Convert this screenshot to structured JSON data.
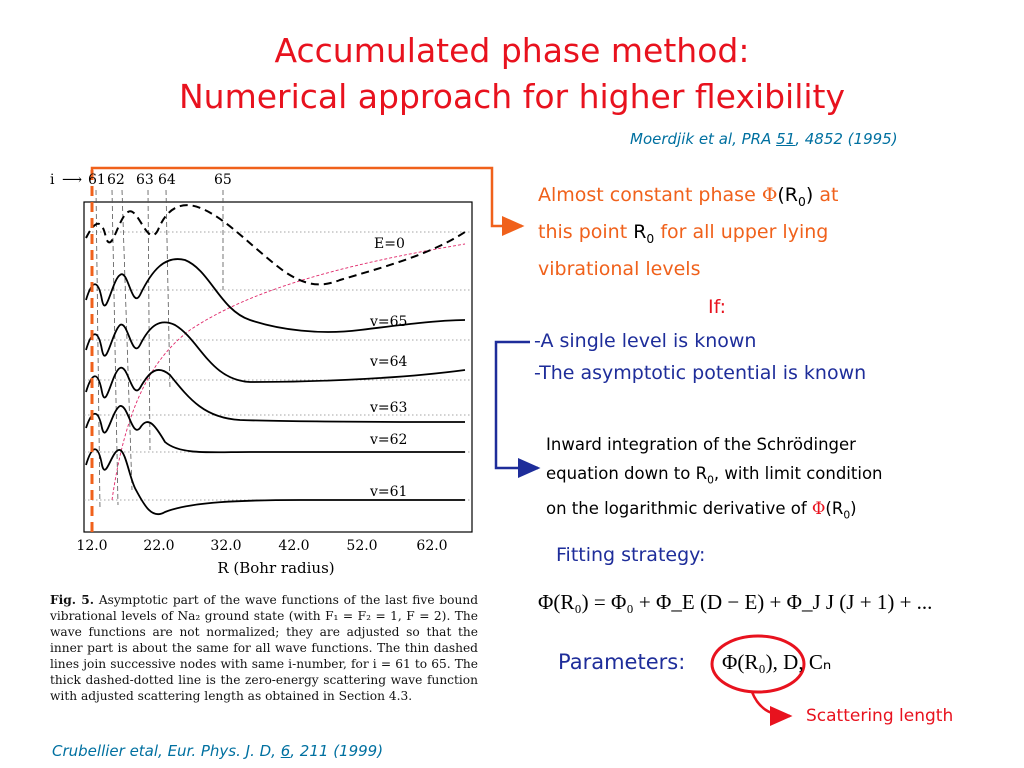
{
  "title": {
    "line1": "Accumulated phase method:",
    "line2": "Numerical approach for higher flexibility"
  },
  "reference_top": {
    "text_before": "Moerdjik et al, PRA ",
    "volume": "51",
    "text_after": ", 4852 (1995)"
  },
  "figure": {
    "i_label": "i",
    "node_numbers": [
      "61",
      "62",
      "63",
      "64",
      "65"
    ],
    "curve_labels": [
      "E=0",
      "v=65",
      "v=64",
      "v=63",
      "v=62",
      "v=61"
    ],
    "x_ticks": [
      "12.0",
      "22.0",
      "32.0",
      "42.0",
      "52.0",
      "62.0"
    ],
    "x_label": "R (Bohr radius)"
  },
  "caption": {
    "label": "Fig. 5.",
    "text": "Asymptotic part of the wave functions of the last five bound vibrational levels of Na₂ ground state (with F₁ = F₂ = 1, F = 2). The wave functions are not normalized; they are adjusted so that the inner part is about the same for all wave functions. The thin dashed lines join successive nodes with same i-number, for i = 61 to 65. The thick dashed-dotted line is the zero-energy scattering wave function with adjusted scattering length as obtained in Section 4.3."
  },
  "reference_bottom": {
    "text_before": "Crubellier etal, Eur. Phys. J. D, ",
    "volume": "6",
    "text_after": ", 211 (1999)"
  },
  "phase_note": {
    "line1_a": "Almost constant phase ",
    "phi": "Φ",
    "paren_open": "(R",
    "sub0": "0",
    "paren_close": ")",
    "line1_b": " at",
    "line2_a": "this point ",
    "r": "R",
    "line2_b": " for all upper lying",
    "line3": "vibrational levels"
  },
  "if_block": {
    "heading": "If:",
    "item1": "-A single level is known",
    "item2": "-The asymptotic potential is known"
  },
  "inward": {
    "line1": "Inward integration of the Schrödinger",
    "line2_a": "equation down to R",
    "line2_b": ", with limit condition",
    "line3_a": "on the logarithmic derivative of ",
    "phi": "Φ",
    "line3_b": "(R",
    "line3_c": ")"
  },
  "fitting": {
    "label": "Fitting strategy:",
    "equation": "Φ(R₀) = Φ₀ + Φ_E (D − E) + Φ_J J (J + 1) + ..."
  },
  "parameters": {
    "label": "Parameters:",
    "values": "Φ(R₀), D, Cₙ"
  },
  "scattering": {
    "label": "Scattering length"
  },
  "colors": {
    "title_red": "#e8121e",
    "orange": "#f0611b",
    "blue": "#1e2d9a",
    "ref_teal": "#0070a0"
  }
}
